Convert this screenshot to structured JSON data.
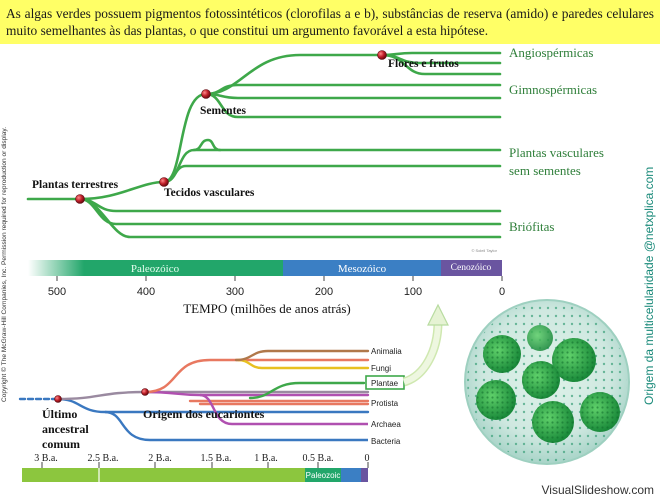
{
  "header": {
    "text": "As algas verdes possuem pigmentos fotossintéticos (clorofilas a e b), substâncias de reserva (amido) e paredes celulares muito semelhantes às das plantas, o que constitui um argumento favorável a esta hipótese."
  },
  "copyright": "Copyright © The McGraw-Hill Companies, Inc. Permission required for reproduction or display.",
  "side_title": "Origem da multicelularidade @netxplica.com",
  "watermark": "VisualSlideshow.com",
  "upper_tree": {
    "groups": [
      "Angiospérmicas",
      "Gimnospérmicas",
      "Plantas vasculares",
      "sem sementes",
      "Briófitas"
    ],
    "events": [
      "Plantas terrestres",
      "Tecidos vasculares",
      "Sementes",
      "Flores e frutos"
    ],
    "eras": [
      "Paleozóico",
      "Mesozóico",
      "Cenozóico"
    ],
    "ticks": [
      "500",
      "400",
      "300",
      "200",
      "100",
      "0"
    ],
    "axis_title": "TEMPO (milhões de anos atrás)",
    "credit": "© Soleil Taylor"
  },
  "lower_tree": {
    "groups": [
      "Animalia",
      "Fungi",
      "Plantae",
      "Protista",
      "Archaea",
      "Bacteria"
    ],
    "events": [
      "Último",
      "ancestral",
      "comum",
      "Origem dos eucariontes"
    ],
    "ticks": [
      "3 B.a.",
      "2.5 B.a.",
      "2 B.a.",
      "1.5 B.a.",
      "1 B.a.",
      "0.5 B.a.",
      "0"
    ],
    "era": "Paleozoic"
  },
  "colors": {
    "header_bg": "#ffff66",
    "branch_green": "#3ea84a",
    "node_red": "#c0202a",
    "paleozoic": "#22a66a",
    "mesozoic": "#3b7fc4",
    "cenozoic": "#6a55a0",
    "animalia": "#b0784a",
    "fungi": "#e8c020",
    "protista": "#e87860",
    "archaea": "#b050b0",
    "bacteria": "#3a78c0",
    "side_title": "#1a8a7a"
  }
}
